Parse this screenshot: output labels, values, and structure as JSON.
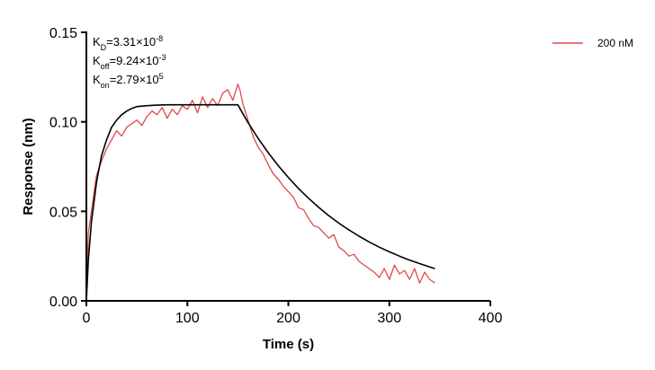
{
  "chart_data": {
    "type": "line",
    "title": "",
    "xlabel": "Time (s)",
    "ylabel": "Response (nm)",
    "xlim": [
      0,
      400
    ],
    "ylim": [
      0,
      0.15
    ],
    "x_ticks": [
      0,
      100,
      200,
      300,
      400
    ],
    "y_ticks": [
      0.0,
      0.05,
      0.1,
      0.15
    ],
    "y_tick_labels": [
      "0.00",
      "0.05",
      "0.10",
      "0.15"
    ],
    "grid": false,
    "legend_position": "top-right",
    "colors": {
      "measured": "#e04848",
      "fit": "#000000"
    },
    "annotations": [
      {
        "base": "K",
        "sub": "D",
        "value": "=3.31×10",
        "exp": "-8"
      },
      {
        "base": "K",
        "sub": "off",
        "value": "=9.24×10",
        "exp": "-3"
      },
      {
        "base": "K",
        "sub": "on",
        "value": "=2.79×10",
        "exp": "5"
      }
    ],
    "series": [
      {
        "name": "200 nM",
        "kind": "measured",
        "x": [
          0,
          2,
          5,
          10,
          15,
          20,
          25,
          30,
          35,
          40,
          45,
          50,
          55,
          60,
          65,
          70,
          75,
          80,
          85,
          90,
          95,
          100,
          105,
          110,
          115,
          120,
          125,
          130,
          135,
          140,
          145,
          150,
          152,
          155,
          160,
          165,
          170,
          175,
          180,
          185,
          190,
          195,
          200,
          205,
          210,
          215,
          220,
          225,
          230,
          235,
          240,
          245,
          250,
          255,
          260,
          265,
          270,
          275,
          280,
          285,
          290,
          295,
          300,
          305,
          310,
          315,
          320,
          325,
          330,
          335,
          340,
          345
        ],
        "y": [
          0.002,
          0.038,
          0.05,
          0.07,
          0.078,
          0.085,
          0.09,
          0.095,
          0.092,
          0.097,
          0.099,
          0.101,
          0.098,
          0.103,
          0.106,
          0.104,
          0.108,
          0.102,
          0.107,
          0.104,
          0.109,
          0.107,
          0.112,
          0.105,
          0.114,
          0.108,
          0.113,
          0.109,
          0.116,
          0.118,
          0.112,
          0.121,
          0.118,
          0.11,
          0.101,
          0.092,
          0.086,
          0.082,
          0.076,
          0.071,
          0.068,
          0.064,
          0.061,
          0.058,
          0.052,
          0.051,
          0.046,
          0.042,
          0.041,
          0.038,
          0.035,
          0.037,
          0.03,
          0.028,
          0.025,
          0.026,
          0.022,
          0.02,
          0.018,
          0.016,
          0.013,
          0.018,
          0.012,
          0.02,
          0.015,
          0.017,
          0.012,
          0.018,
          0.01,
          0.016,
          0.012,
          0.01
        ]
      },
      {
        "name": "",
        "kind": "fit",
        "x": [
          0,
          2,
          5,
          10,
          15,
          20,
          25,
          30,
          35,
          40,
          45,
          50,
          60,
          70,
          80,
          100,
          120,
          140,
          150,
          155,
          160,
          170,
          180,
          190,
          200,
          210,
          220,
          230,
          240,
          250,
          260,
          270,
          280,
          290,
          300,
          310,
          320,
          330,
          340,
          345
        ],
        "y": [
          0.0,
          0.023,
          0.044,
          0.066,
          0.081,
          0.09,
          0.097,
          0.101,
          0.104,
          0.106,
          0.1075,
          0.1085,
          0.109,
          0.1093,
          0.1095,
          0.1095,
          0.1095,
          0.1095,
          0.1095,
          0.1045,
          0.0997,
          0.0908,
          0.0828,
          0.0755,
          0.0689,
          0.0628,
          0.0573,
          0.0522,
          0.0476,
          0.0434,
          0.0396,
          0.0361,
          0.0329,
          0.03,
          0.0274,
          0.025,
          0.0228,
          0.0208,
          0.0189,
          0.018
        ]
      }
    ]
  }
}
